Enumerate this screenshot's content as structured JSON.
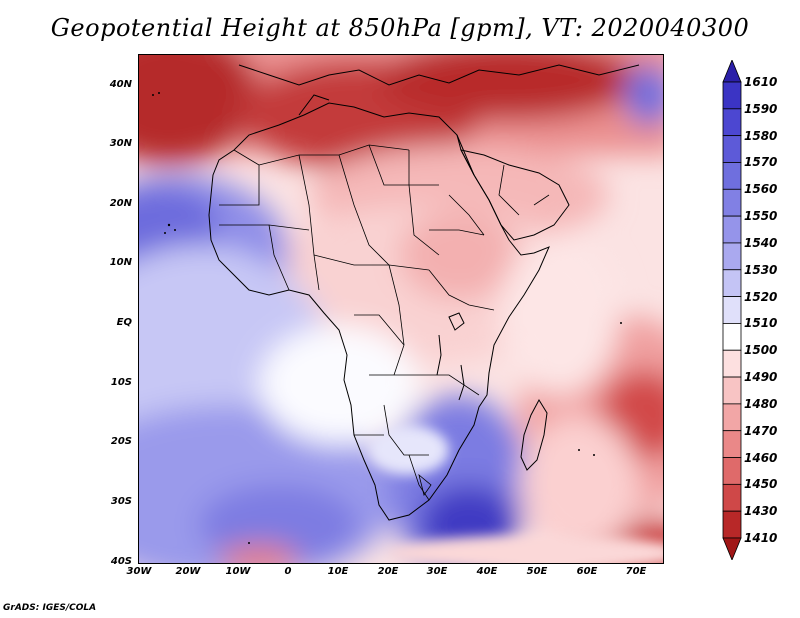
{
  "title": "Geopotential Height at 850hPa [gpm], VT: 2020040300",
  "credit": "GrADS: IGES/COLA",
  "lat_labels": [
    "40N",
    "30N",
    "20N",
    "10N",
    "EQ",
    "10S",
    "20S",
    "30S",
    "40S"
  ],
  "lon_labels": [
    "30W",
    "20W",
    "10W",
    "0",
    "10E",
    "20E",
    "30E",
    "40E",
    "50E",
    "60E",
    "70E"
  ],
  "colorbar": {
    "labels": [
      "1610",
      "1590",
      "1580",
      "1570",
      "1560",
      "1550",
      "1540",
      "1530",
      "1520",
      "1510",
      "1500",
      "1490",
      "1480",
      "1470",
      "1460",
      "1450",
      "1430",
      "1410"
    ],
    "colors": [
      "#2b1fa8",
      "#3b34c4",
      "#4c47d1",
      "#5d5ad8",
      "#6f6fde",
      "#8180e4",
      "#9594ea",
      "#aaa9ef",
      "#c4c4f5",
      "#e0e0fa",
      "#ffffff",
      "#fde0e0",
      "#f8c4c4",
      "#f2a6a6",
      "#ea8888",
      "#df6a6a",
      "#cf4848",
      "#b82828",
      "#a01616"
    ]
  }
}
